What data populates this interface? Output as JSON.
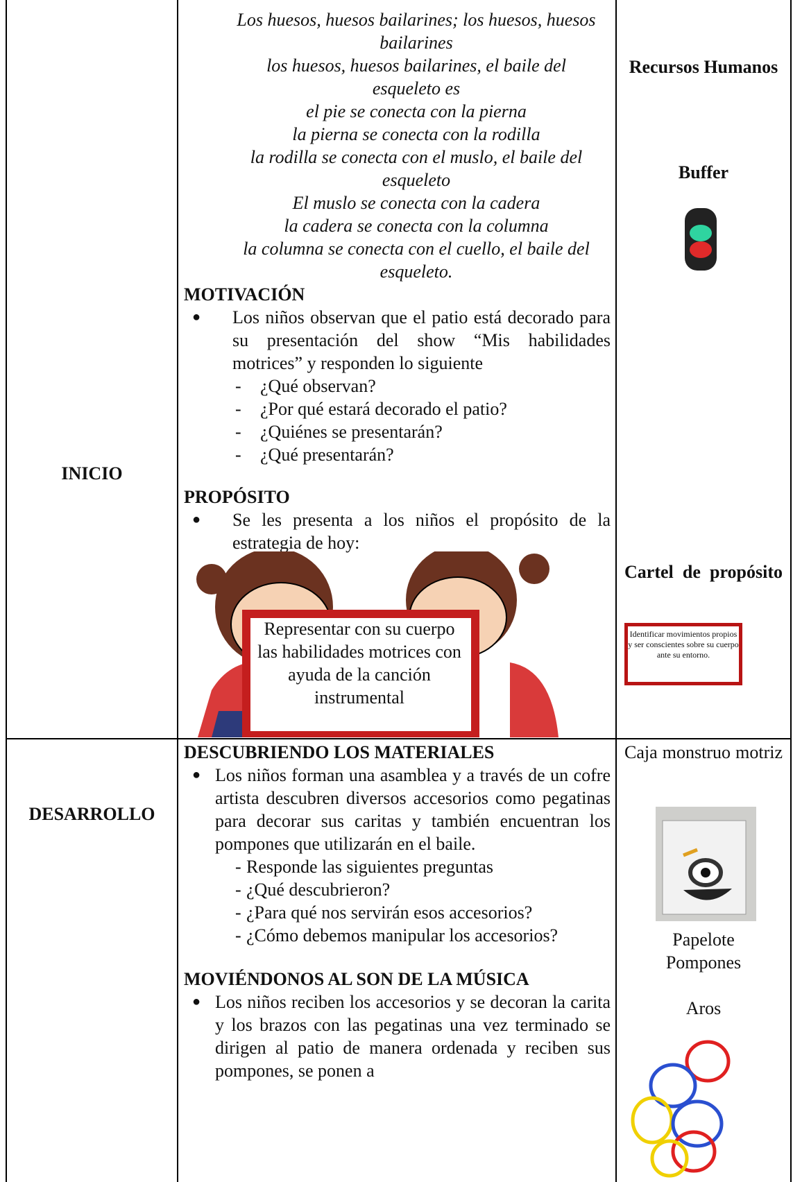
{
  "table": {
    "rows": [
      {
        "stage": "INICIO",
        "song": [
          "Los huesos, huesos bailarines; los huesos, huesos bailarines",
          "los huesos, huesos bailarines, el baile del esqueleto es",
          "el pie se conecta con la pierna",
          "la pierna se conecta con la rodilla",
          "la rodilla se conecta con el muslo, el baile del esqueleto",
          "El muslo se conecta con la cadera",
          "la cadera se conecta con la columna",
          "la columna se conecta con el cuello, el baile del esqueleto."
        ],
        "sections": [
          {
            "heading": "MOTIVACIÓN",
            "bullet": "Los niños observan que el patio está decorado para su presentación del show “Mis habilidades motrices” y responden lo siguiente",
            "items": [
              "¿Qué observan?",
              "¿Por qué estará decorado el patio?",
              "¿Quiénes se presentarán?",
              "¿Qué presentarán?"
            ]
          },
          {
            "heading": "PROPÓSITO",
            "bullet": "Se les presenta a los niños el propósito de la estrategia de hoy:",
            "sign": "Representar con su cuerpo las habilidades motrices con ayuda de la canción instrumental"
          }
        ],
        "resources": [
          "Recursos Humanos",
          "Buffer",
          "Cartel de propósito"
        ],
        "poster": "Identificar movimientos propios y ser conscientes sobre su cuerpo ante su entorno."
      },
      {
        "stage": "DESARROLLO",
        "sections": [
          {
            "heading": "DESCUBRIENDO LOS MATERIALES",
            "bullet": "Los niños forman una asamblea y a través de un cofre artista descubren diversos accesorios como pegatinas para decorar sus caritas y también encuentran los pompones que utilizarán en el baile.",
            "items": [
              "Responde las siguientes preguntas",
              "¿Qué descubrieron?",
              "¿Para qué nos servirán esos accesorios?",
              "¿Cómo debemos manipular los accesorios?"
            ]
          },
          {
            "heading": "MOVIÉNDONOS AL SON DE LA MÚSICA",
            "bullet": "Los niños reciben los accesorios y se decoran la carita y los brazos con las pegatinas una vez terminado se dirigen al patio de manera ordenada y reciben sus pompones, se ponen a"
          }
        ],
        "resources": [
          "Caja monstruo motriz",
          "Papelote",
          "Pompones",
          "Aros"
        ]
      }
    ]
  }
}
